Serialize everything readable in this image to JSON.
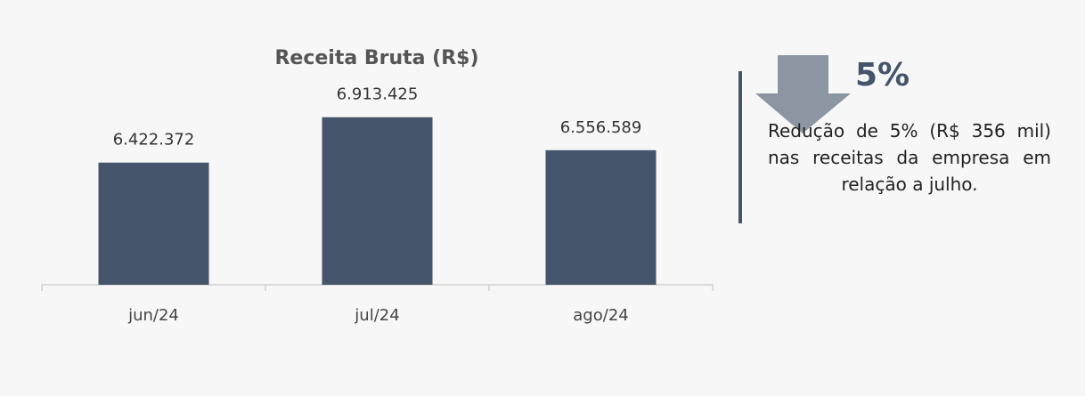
{
  "chart_data": {
    "type": "bar",
    "title": "Receita Bruta (R$)",
    "categories": [
      "jun/24",
      "jul/24",
      "ago/24"
    ],
    "values": [
      6422372,
      6913425,
      6556589
    ],
    "value_labels": [
      "6.422.372",
      "6.913.425",
      "6.556.589"
    ],
    "color": "#44546a",
    "ylim": [
      5100000,
      7200000
    ]
  },
  "callout": {
    "headline": "5%",
    "text": "Redução de 5% (R$ 356 mil) nas receitas da empresa em relação a julho."
  }
}
